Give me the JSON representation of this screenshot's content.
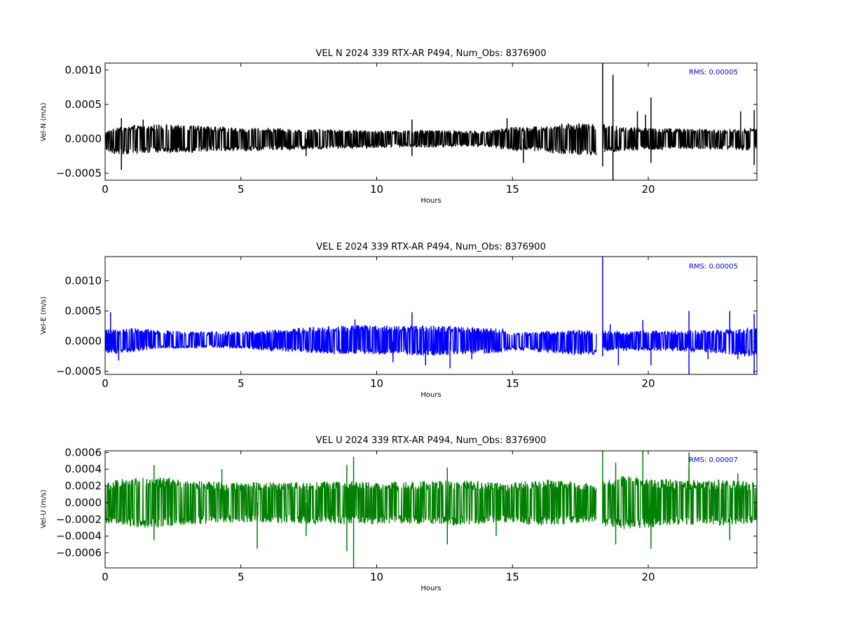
{
  "chart_data": [
    {
      "type": "line",
      "title": "VEL N 2024 339 RTX-AR  P494, Num_Obs: 8376900",
      "xlabel": "Hours",
      "ylabel": "Vel-N (m/s)",
      "xlim": [
        0,
        24
      ],
      "ylim": [
        -0.0006,
        0.0011
      ],
      "x_ticks": [
        0,
        5,
        10,
        15,
        20
      ],
      "x_tick_labels": [
        "0",
        "5",
        "10",
        "15",
        "20"
      ],
      "y_ticks": [
        0.001,
        0.0005,
        0.0,
        -0.0005
      ],
      "y_tick_labels": [
        "0.0010",
        "0.0005",
        "0.0000",
        "−0.0005"
      ],
      "color": "#000000",
      "rms_label": "RMS:  0.00005",
      "rms_color": "#0000ff",
      "gap_hours": [
        18.1,
        18.32
      ],
      "envelope": {
        "hours": [
          0,
          0.5,
          1,
          2,
          3,
          4,
          5,
          6,
          7,
          8,
          9,
          10,
          11,
          12,
          13,
          14,
          14.5,
          15,
          16,
          17,
          18.1,
          18.32,
          19,
          20,
          21,
          22,
          23,
          24
        ],
        "upper": [
          0.0001,
          0.00018,
          0.0002,
          0.00021,
          0.0002,
          0.00018,
          0.00016,
          0.00016,
          0.00015,
          0.00015,
          0.00013,
          0.00012,
          0.00012,
          0.00013,
          0.00012,
          0.00011,
          0.00014,
          0.00018,
          0.00018,
          0.00022,
          0.00022,
          0.00022,
          0.00018,
          0.00016,
          0.00015,
          0.00014,
          0.00013,
          0.00016
        ],
        "lower": [
          -0.0002,
          -0.00022,
          -0.00022,
          -0.0002,
          -0.0002,
          -0.00018,
          -0.00018,
          -0.00017,
          -0.00016,
          -0.00015,
          -0.00014,
          -0.00013,
          -0.00012,
          -0.00013,
          -0.00012,
          -0.00011,
          -0.00015,
          -0.00018,
          -0.00018,
          -0.00024,
          -0.00024,
          -0.00022,
          -0.00018,
          -0.00016,
          -0.00015,
          -0.00015,
          -0.00015,
          -0.00018
        ]
      },
      "spikes": [
        {
          "x": 0.6,
          "y": 0.0003
        },
        {
          "x": 0.6,
          "y": -0.00045
        },
        {
          "x": 1.4,
          "y": 0.00028
        },
        {
          "x": 7.4,
          "y": -0.00025
        },
        {
          "x": 11.3,
          "y": 0.00028
        },
        {
          "x": 11.3,
          "y": -0.00025
        },
        {
          "x": 14.8,
          "y": 0.0003
        },
        {
          "x": 15.4,
          "y": -0.00035
        },
        {
          "x": 18.32,
          "y": 0.0011
        },
        {
          "x": 18.32,
          "y": -0.0004
        },
        {
          "x": 18.7,
          "y": 0.00093
        },
        {
          "x": 18.7,
          "y": -0.0006
        },
        {
          "x": 19.6,
          "y": 0.0004
        },
        {
          "x": 19.9,
          "y": 0.00035
        },
        {
          "x": 20.1,
          "y": 0.0006
        },
        {
          "x": 20.1,
          "y": -0.00035
        },
        {
          "x": 23.4,
          "y": 0.0004
        },
        {
          "x": 23.9,
          "y": 0.00042
        },
        {
          "x": 23.9,
          "y": -0.00038
        }
      ]
    },
    {
      "type": "line",
      "title": "VEL E 2024 339 RTX-AR  P494, Num_Obs: 8376900",
      "xlabel": "Hours",
      "ylabel": "Vel-E (m/s)",
      "xlim": [
        0,
        24
      ],
      "ylim": [
        -0.00055,
        0.0014
      ],
      "x_ticks": [
        0,
        5,
        10,
        15,
        20
      ],
      "x_tick_labels": [
        "0",
        "5",
        "10",
        "15",
        "20"
      ],
      "y_ticks": [
        0.001,
        0.0005,
        0.0,
        -0.0005
      ],
      "y_tick_labels": [
        "0.0010",
        "0.0005",
        "0.0000",
        "−0.0005"
      ],
      "color": "#0000ff",
      "rms_label": "RMS:  0.00005",
      "rms_color": "#0000ff",
      "gap_hours": [
        18.1,
        18.32
      ],
      "envelope": {
        "hours": [
          0,
          0.5,
          1,
          2,
          3,
          4,
          5,
          6,
          7,
          8,
          9,
          10,
          11,
          12,
          13,
          14,
          14.5,
          15,
          16,
          17,
          18.1,
          18.32,
          19,
          20,
          21,
          22,
          23,
          24
        ],
        "upper": [
          0.0002,
          0.0002,
          0.00022,
          0.00018,
          0.00016,
          0.00016,
          0.00016,
          0.00018,
          0.00022,
          0.00024,
          0.00026,
          0.00026,
          0.00026,
          0.00026,
          0.00024,
          0.00022,
          0.00022,
          0.00014,
          0.00016,
          0.00018,
          0.00018,
          0.00018,
          0.00016,
          0.00018,
          0.00018,
          0.00018,
          0.0002,
          0.00022
        ],
        "lower": [
          -0.0002,
          -0.00022,
          -0.00018,
          -0.00012,
          -0.00012,
          -0.0001,
          -0.00012,
          -0.00016,
          -0.00018,
          -0.0002,
          -0.00022,
          -0.00022,
          -0.00024,
          -0.00024,
          -0.00022,
          -0.0002,
          -0.0002,
          -0.00014,
          -0.00018,
          -0.00022,
          -0.00022,
          -0.00016,
          -0.00016,
          -0.00016,
          -0.00016,
          -0.00018,
          -0.00022,
          -0.00026
        ]
      },
      "spikes": [
        {
          "x": 0.2,
          "y": 0.00048
        },
        {
          "x": 0.5,
          "y": -0.00032
        },
        {
          "x": 9.2,
          "y": 0.00036
        },
        {
          "x": 10.6,
          "y": -0.00035
        },
        {
          "x": 11.3,
          "y": 0.00048
        },
        {
          "x": 11.8,
          "y": -0.0004
        },
        {
          "x": 12.7,
          "y": -0.00045
        },
        {
          "x": 13.5,
          "y": -0.0003
        },
        {
          "x": 18.32,
          "y": 0.0014
        },
        {
          "x": 18.32,
          "y": -0.00025
        },
        {
          "x": 18.6,
          "y": 0.00028
        },
        {
          "x": 18.9,
          "y": -0.0004
        },
        {
          "x": 19.8,
          "y": 0.00035
        },
        {
          "x": 20.1,
          "y": -0.0004
        },
        {
          "x": 21.5,
          "y": 0.0005
        },
        {
          "x": 21.5,
          "y": -0.00055
        },
        {
          "x": 22.2,
          "y": -0.0003
        },
        {
          "x": 23.0,
          "y": 0.0005
        },
        {
          "x": 23.3,
          "y": -0.0003
        },
        {
          "x": 23.9,
          "y": 0.00045
        },
        {
          "x": 23.9,
          "y": -0.00055
        }
      ]
    },
    {
      "type": "line",
      "title": "VEL U 2024 339 RTX-AR  P494, Num_Obs: 8376900",
      "xlabel": "Hours",
      "ylabel": "Vel-U (m/s)",
      "xlim": [
        0,
        24
      ],
      "ylim": [
        -0.00078,
        0.00062
      ],
      "x_ticks": [
        0,
        5,
        10,
        15,
        20
      ],
      "x_tick_labels": [
        "0",
        "5",
        "10",
        "15",
        "20"
      ],
      "y_ticks": [
        0.0006,
        0.0004,
        0.0002,
        0.0,
        -0.0002,
        -0.0004,
        -0.0006
      ],
      "y_tick_labels": [
        "0.0006",
        "0.0004",
        "0.0002",
        "0.0000",
        "−0.0002",
        "−0.0004",
        "−0.0006"
      ],
      "color": "#008000",
      "rms_label": "RMS:  0.00007",
      "rms_color": "#0000ff",
      "gap_hours": [
        18.1,
        18.32
      ],
      "envelope": {
        "hours": [
          0,
          0.5,
          1,
          2,
          3,
          4,
          5,
          6,
          7,
          8,
          9,
          10,
          11,
          12,
          13,
          14,
          14.5,
          15,
          16,
          17,
          18.1,
          18.32,
          19,
          20,
          21,
          22,
          23,
          24
        ],
        "upper": [
          0.00025,
          0.00028,
          0.0003,
          0.0003,
          0.00027,
          0.00025,
          0.00024,
          0.00025,
          0.00025,
          0.00026,
          0.00026,
          0.00026,
          0.00025,
          0.00026,
          0.00027,
          0.00025,
          0.00024,
          0.00024,
          0.0003,
          0.00026,
          0.00022,
          0.00028,
          0.00032,
          0.0003,
          0.00028,
          0.00026,
          0.00028,
          0.00024
        ],
        "lower": [
          -0.00025,
          -0.00028,
          -0.0003,
          -0.0003,
          -0.00027,
          -0.00025,
          -0.00024,
          -0.00025,
          -0.00025,
          -0.00026,
          -0.00026,
          -0.00026,
          -0.00025,
          -0.00026,
          -0.00027,
          -0.00025,
          -0.00024,
          -0.00024,
          -0.00028,
          -0.00026,
          -0.00022,
          -0.00028,
          -0.00032,
          -0.0003,
          -0.00028,
          -0.00026,
          -0.00028,
          -0.00024
        ]
      },
      "spikes": [
        {
          "x": 1.8,
          "y": 0.00045
        },
        {
          "x": 1.8,
          "y": -0.00045
        },
        {
          "x": 4.3,
          "y": 0.0004
        },
        {
          "x": 5.6,
          "y": -0.00055
        },
        {
          "x": 7.4,
          "y": -0.0004
        },
        {
          "x": 8.9,
          "y": 0.00045
        },
        {
          "x": 8.9,
          "y": -0.00058
        },
        {
          "x": 9.15,
          "y": 0.00055
        },
        {
          "x": 9.15,
          "y": -0.00078
        },
        {
          "x": 12.6,
          "y": -0.0005
        },
        {
          "x": 12.6,
          "y": 0.00042
        },
        {
          "x": 14.4,
          "y": -0.0004
        },
        {
          "x": 18.32,
          "y": 0.00062
        },
        {
          "x": 18.32,
          "y": -0.00025
        },
        {
          "x": 18.8,
          "y": 0.00048
        },
        {
          "x": 18.8,
          "y": -0.0005
        },
        {
          "x": 19.8,
          "y": 0.00062
        },
        {
          "x": 20.1,
          "y": -0.00055
        },
        {
          "x": 21.5,
          "y": 0.0006
        },
        {
          "x": 21.5,
          "y": 0.0004
        },
        {
          "x": 23.0,
          "y": -0.00045
        },
        {
          "x": 23.3,
          "y": 0.00035
        }
      ]
    }
  ]
}
